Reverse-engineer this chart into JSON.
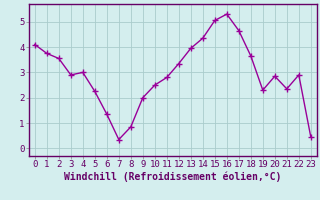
{
  "xlabel": "Windchill (Refroidissement éolien,°C)",
  "x_values": [
    0,
    1,
    2,
    3,
    4,
    5,
    6,
    7,
    8,
    9,
    10,
    11,
    12,
    13,
    14,
    15,
    16,
    17,
    18,
    19,
    20,
    21,
    22,
    23
  ],
  "y_values": [
    4.1,
    3.75,
    3.55,
    2.9,
    3.0,
    2.25,
    1.35,
    0.35,
    0.85,
    2.0,
    2.5,
    2.8,
    3.35,
    3.95,
    4.35,
    5.05,
    5.3,
    4.65,
    3.65,
    2.3,
    2.85,
    2.35,
    2.9,
    0.45
  ],
  "line_color": "#990099",
  "marker": "+",
  "marker_size": 5,
  "bg_color": "#d4eeee",
  "grid_color": "#aacccc",
  "axes_color": "#888888",
  "ylim": [
    -0.3,
    5.7
  ],
  "xlim": [
    -0.5,
    23.5
  ],
  "yticks": [
    0,
    1,
    2,
    3,
    4,
    5
  ],
  "xticks": [
    0,
    1,
    2,
    3,
    4,
    5,
    6,
    7,
    8,
    9,
    10,
    11,
    12,
    13,
    14,
    15,
    16,
    17,
    18,
    19,
    20,
    21,
    22,
    23
  ],
  "tick_label_fontsize": 6.5,
  "xlabel_fontsize": 7,
  "line_width": 1.0
}
